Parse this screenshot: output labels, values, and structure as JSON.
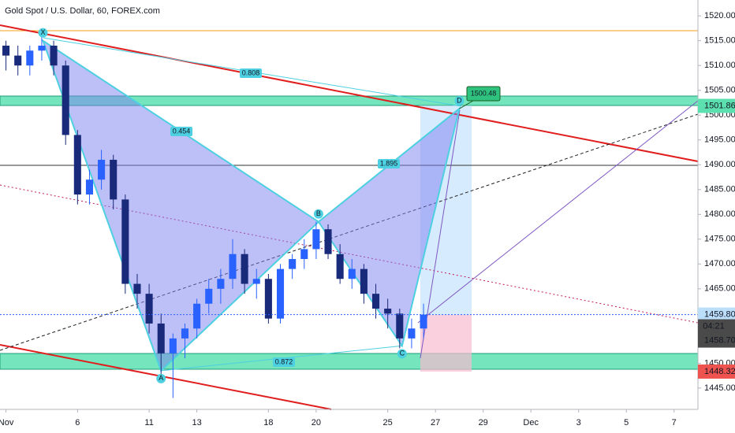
{
  "chart_data": {
    "type": "candlestick",
    "title": "Gold Spot / U.S. Dollar, 60, FOREX.com",
    "up_color": "#2962ff",
    "down_color": "#1a2a7a",
    "xlim": [
      -0.25,
      29
    ],
    "ylim": [
      1440.7,
      1523.2
    ],
    "xticks": [
      {
        "value": 0,
        "label": "Nov"
      },
      {
        "value": 3,
        "label": "6"
      },
      {
        "value": 6,
        "label": "11"
      },
      {
        "value": 8,
        "label": "13"
      },
      {
        "value": 11,
        "label": "18"
      },
      {
        "value": 13,
        "label": "20"
      },
      {
        "value": 16,
        "label": "25"
      },
      {
        "value": 18,
        "label": "27"
      },
      {
        "value": 20,
        "label": "29"
      },
      {
        "value": 22,
        "label": "Dec"
      },
      {
        "value": 24,
        "label": "3"
      },
      {
        "value": 26,
        "label": "5"
      },
      {
        "value": 28,
        "label": "7"
      }
    ],
    "yticks": [
      {
        "value": 1445,
        "label": "1445.00"
      },
      {
        "value": 1450,
        "label": "1450.00"
      },
      {
        "value": 1455,
        "label": "1455.00"
      },
      {
        "value": 1460,
        "label": "1460.00"
      },
      {
        "value": 1465,
        "label": "1465.00"
      },
      {
        "value": 1470,
        "label": "1470.00"
      },
      {
        "value": 1475,
        "label": "1475.00"
      },
      {
        "value": 1480,
        "label": "1480.00"
      },
      {
        "value": 1485,
        "label": "1485.00"
      },
      {
        "value": 1490,
        "label": "1490.00"
      },
      {
        "value": 1495,
        "label": "1495.00"
      },
      {
        "value": 1500,
        "label": "1500.00"
      },
      {
        "value": 1505,
        "label": "1505.00"
      },
      {
        "value": 1510,
        "label": "1510.00"
      },
      {
        "value": 1515,
        "label": "1515.00"
      },
      {
        "value": 1520,
        "label": "1520.00"
      }
    ],
    "x": [
      0,
      0.5,
      1,
      1.5,
      2,
      2.5,
      3,
      3.5,
      4,
      4.5,
      5,
      5.5,
      6,
      6.5,
      7,
      7.5,
      8,
      8.5,
      9,
      9.5,
      10,
      10.5,
      11,
      11.5,
      12,
      12.5,
      13,
      13.5,
      14,
      14.5,
      15,
      15.5,
      16,
      16.5,
      17,
      17.5
    ],
    "open": [
      1514,
      1512,
      1510,
      1513,
      1514,
      1510,
      1496,
      1484,
      1487,
      1491,
      1483,
      1466,
      1464,
      1458,
      1452,
      1455,
      1457,
      1462,
      1465,
      1467,
      1472,
      1466,
      1467,
      1459,
      1469,
      1471,
      1473,
      1477,
      1472,
      1467,
      1469,
      1464,
      1461,
      1460,
      1455,
      1457
    ],
    "high": [
      1515,
      1514,
      1514,
      1516,
      1515,
      1511,
      1497,
      1489,
      1493,
      1492,
      1484,
      1468,
      1466,
      1460,
      1456,
      1458,
      1463,
      1467,
      1469,
      1475,
      1473,
      1469,
      1468,
      1470,
      1472,
      1475,
      1478.5,
      1478,
      1474,
      1471,
      1470,
      1466,
      1463,
      1461,
      1459,
      1462
    ],
    "low": [
      1509,
      1508,
      1508,
      1511,
      1508,
      1494,
      1482,
      1482,
      1485,
      1481,
      1464,
      1461,
      1456,
      1447,
      1443,
      1451,
      1455,
      1460,
      1462,
      1465,
      1464,
      1463,
      1458,
      1458,
      1467,
      1469,
      1471,
      1471,
      1466,
      1465,
      1462,
      1459,
      1457,
      1453,
      1453,
      1455
    ],
    "close": [
      1512,
      1510,
      1513,
      1514,
      1510,
      1496,
      1484,
      1487,
      1491,
      1483,
      1466,
      1464,
      1458,
      1452,
      1455,
      1457,
      1462,
      1465,
      1467,
      1472,
      1466,
      1467,
      1459,
      1469,
      1471,
      1473,
      1477,
      1472,
      1467,
      1469,
      1464,
      1461,
      1460,
      1455,
      1457,
      1459.8
    ],
    "pattern": [
      {
        "label": "X",
        "x": 1.55,
        "y": 1515
      },
      {
        "label": "A",
        "x": 6.5,
        "y": 1448.5
      },
      {
        "label": "B",
        "x": 13.1,
        "y": 1478.5
      },
      {
        "label": "C",
        "x": 16.6,
        "y": 1453.5
      },
      {
        "label": "D",
        "x": 19,
        "y": 1501.3
      }
    ],
    "ratios": [
      "0.808",
      "0.454",
      "1.895",
      "0.872"
    ],
    "target_label": "1500.48",
    "price_labels": [
      {
        "value": 1501.86,
        "label": "1501.86",
        "color": "#5ce0b0"
      },
      {
        "value": 1459.8,
        "label": "1459.80",
        "color": "#bbdefb"
      },
      {
        "value": 1458.7,
        "label": "1458.70",
        "color": "#4a4a4a"
      },
      {
        "value": 1448.32,
        "label": "1448.32",
        "color": "#ef5350"
      }
    ],
    "countdown": "04:21"
  }
}
